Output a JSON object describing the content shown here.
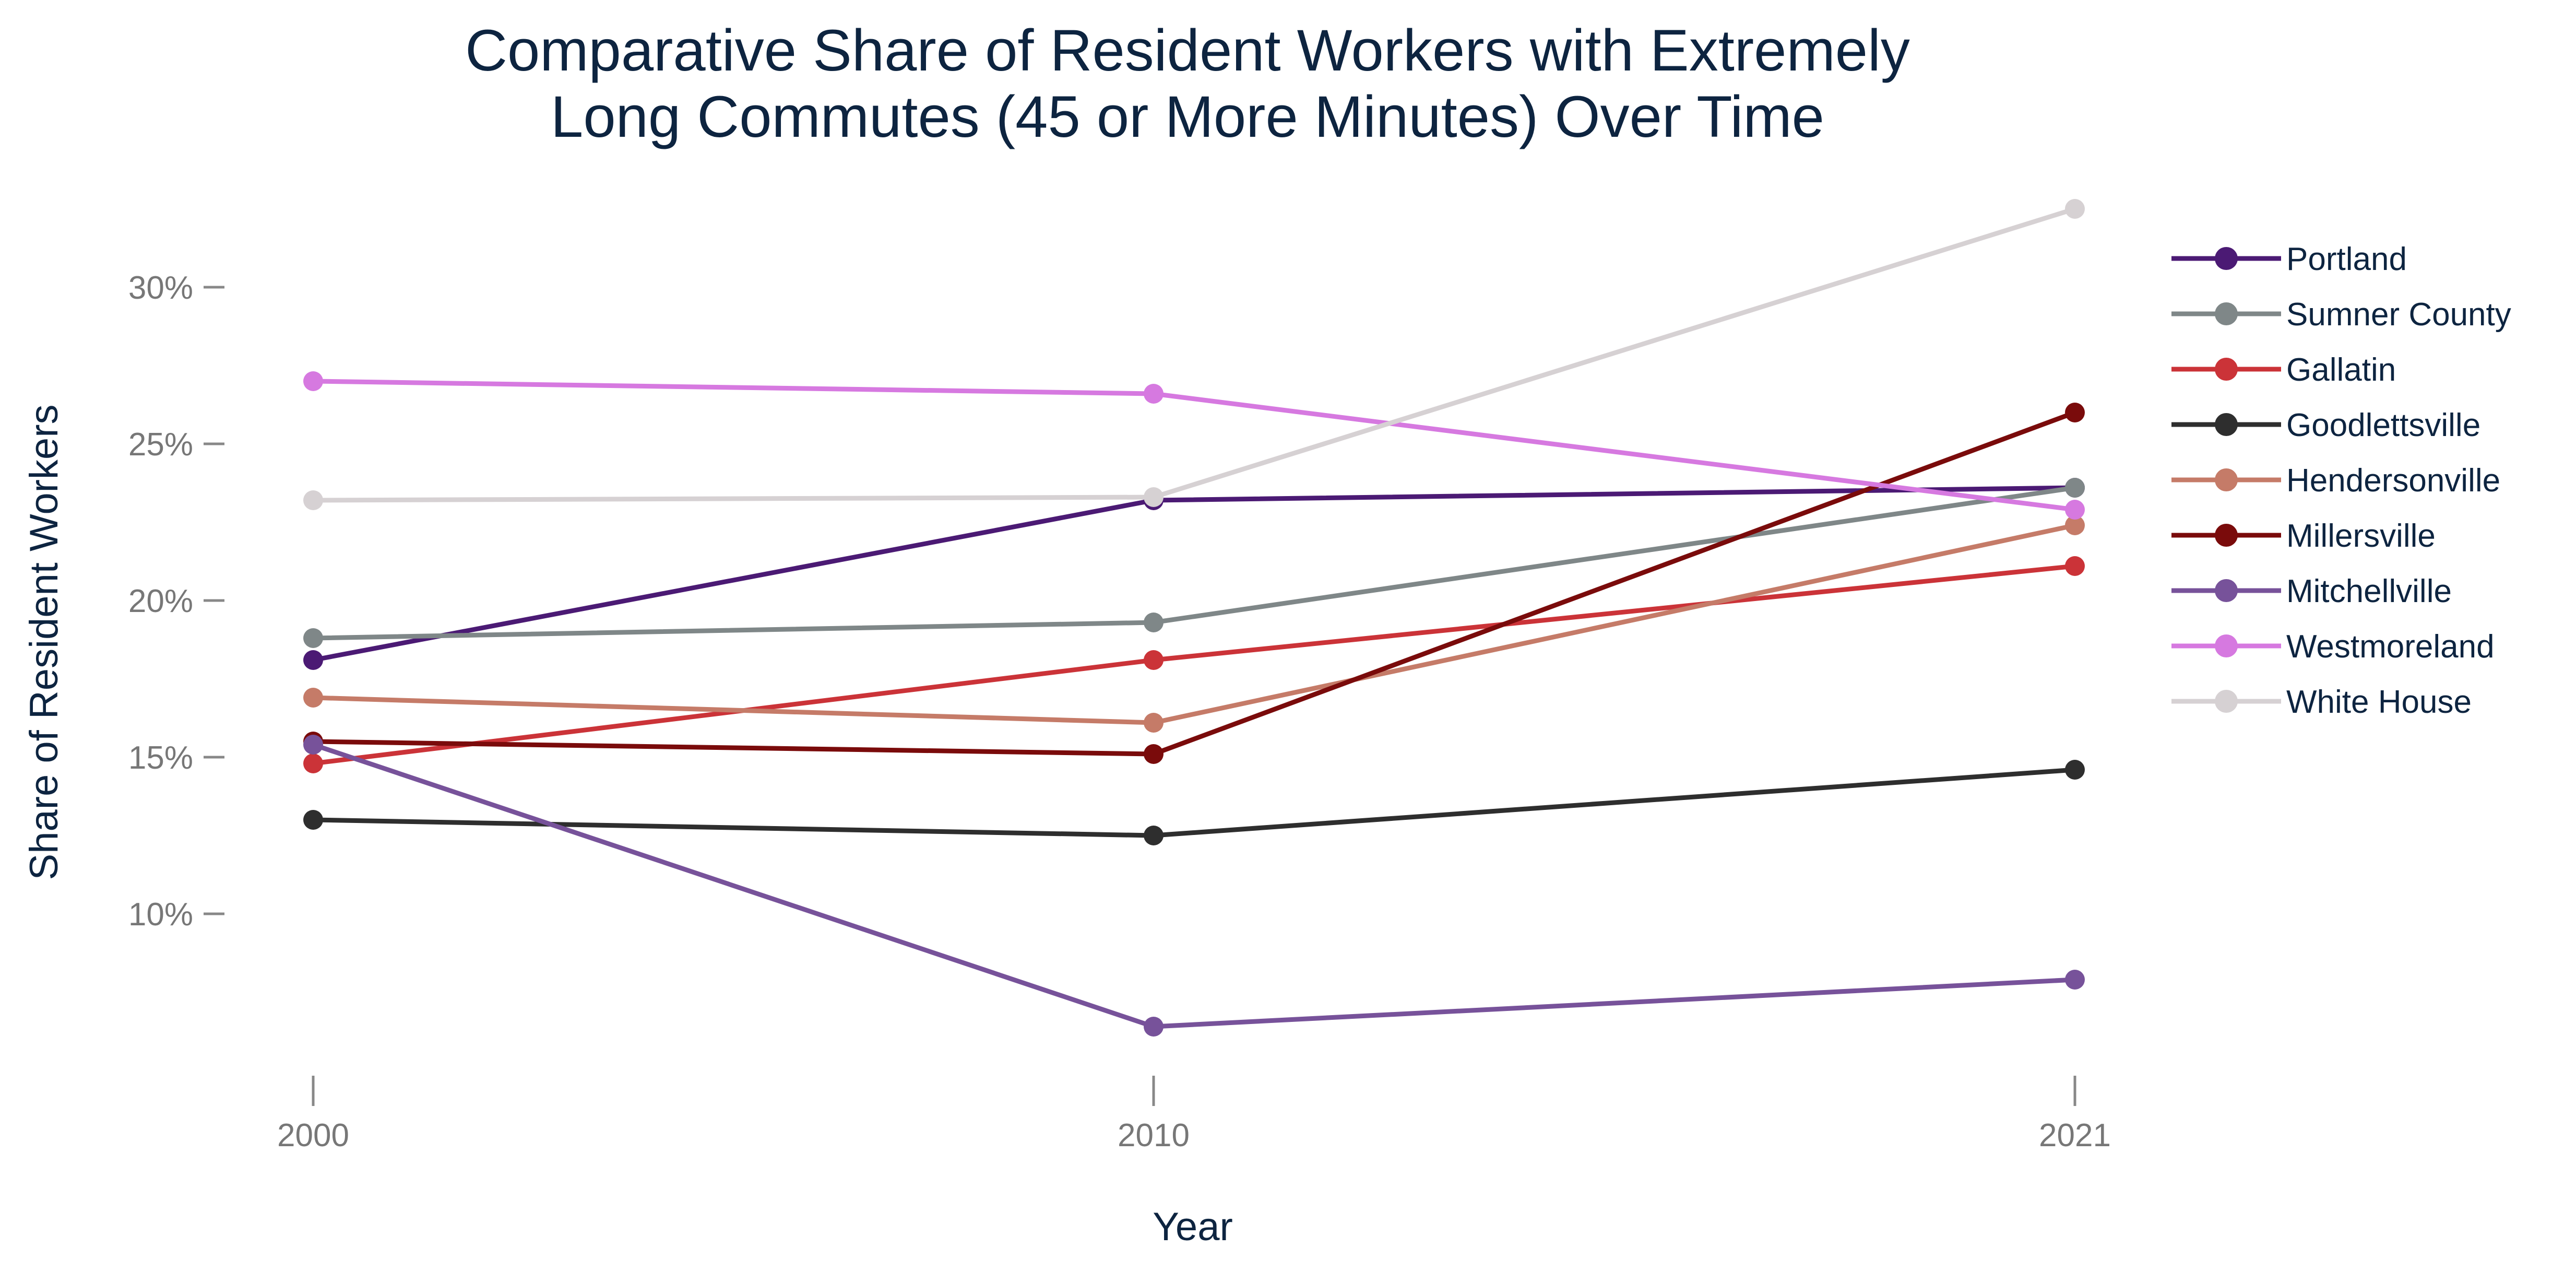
{
  "chart_data": {
    "type": "line",
    "title_lines": [
      "Comparative Share of Resident Workers with Extremely",
      "Long Commutes (45 or More Minutes) Over Time"
    ],
    "xlabel": "Year",
    "ylabel": "Share of Resident Workers",
    "x": [
      2000,
      2010,
      2021
    ],
    "x_ticks": [
      "2000",
      "2010",
      "2021"
    ],
    "y_ticks": [
      10,
      15,
      20,
      25,
      30
    ],
    "y_tick_labels": [
      "10%",
      "15%",
      "20%",
      "25%",
      "30%"
    ],
    "ylim": [
      5,
      33.5
    ],
    "grid": false,
    "legend_position": "right",
    "series": [
      {
        "name": "Portland",
        "color": "#4b1a74",
        "values": [
          18.1,
          23.2,
          23.6
        ]
      },
      {
        "name": "Sumner County",
        "color": "#7f8788",
        "values": [
          18.8,
          19.3,
          23.6
        ]
      },
      {
        "name": "Gallatin",
        "color": "#cb3338",
        "values": [
          14.8,
          18.1,
          21.1
        ]
      },
      {
        "name": "Goodlettsville",
        "color": "#2e2e2e",
        "values": [
          13.0,
          12.5,
          14.6
        ]
      },
      {
        "name": "Hendersonville",
        "color": "#c57b68",
        "values": [
          16.9,
          16.1,
          22.4
        ]
      },
      {
        "name": "Millersville",
        "color": "#7a0b0b",
        "values": [
          15.5,
          15.1,
          26.0
        ]
      },
      {
        "name": "Mitchellville",
        "color": "#77529a",
        "values": [
          15.4,
          6.4,
          7.9
        ]
      },
      {
        "name": "Westmoreland",
        "color": "#d679e0",
        "values": [
          27.0,
          26.6,
          22.9
        ]
      },
      {
        "name": "White House",
        "color": "#d6d1d3",
        "values": [
          23.2,
          23.3,
          32.5
        ]
      }
    ]
  }
}
